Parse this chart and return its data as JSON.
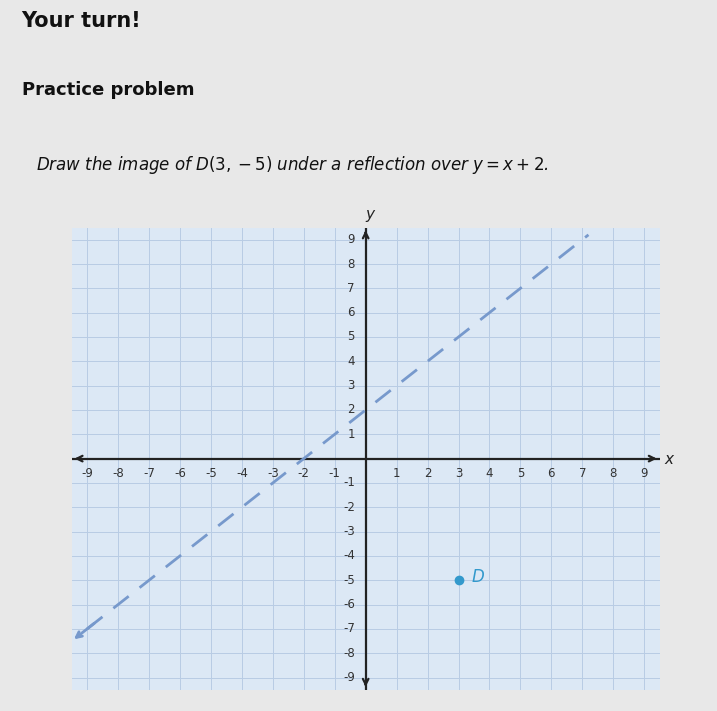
{
  "title_line1": "Your turn!",
  "title_line2": "Practice problem",
  "point_D": [
    3,
    -5
  ],
  "point_D_label": "D",
  "line_slope": 1,
  "line_intercept": 2,
  "axis_min": -9,
  "axis_max": 9,
  "grid_color": "#b8cce4",
  "plot_bg_color": "#dce8f5",
  "outer_bg": "#e8e8e8",
  "dashed_line_color": "#7799cc",
  "point_color": "#3399cc",
  "axis_color": "#222222",
  "text_color": "#111111",
  "tick_fontsize": 8.5,
  "label_fontsize": 11,
  "title1_fontsize": 15,
  "title2_fontsize": 13,
  "body_fontsize": 12
}
